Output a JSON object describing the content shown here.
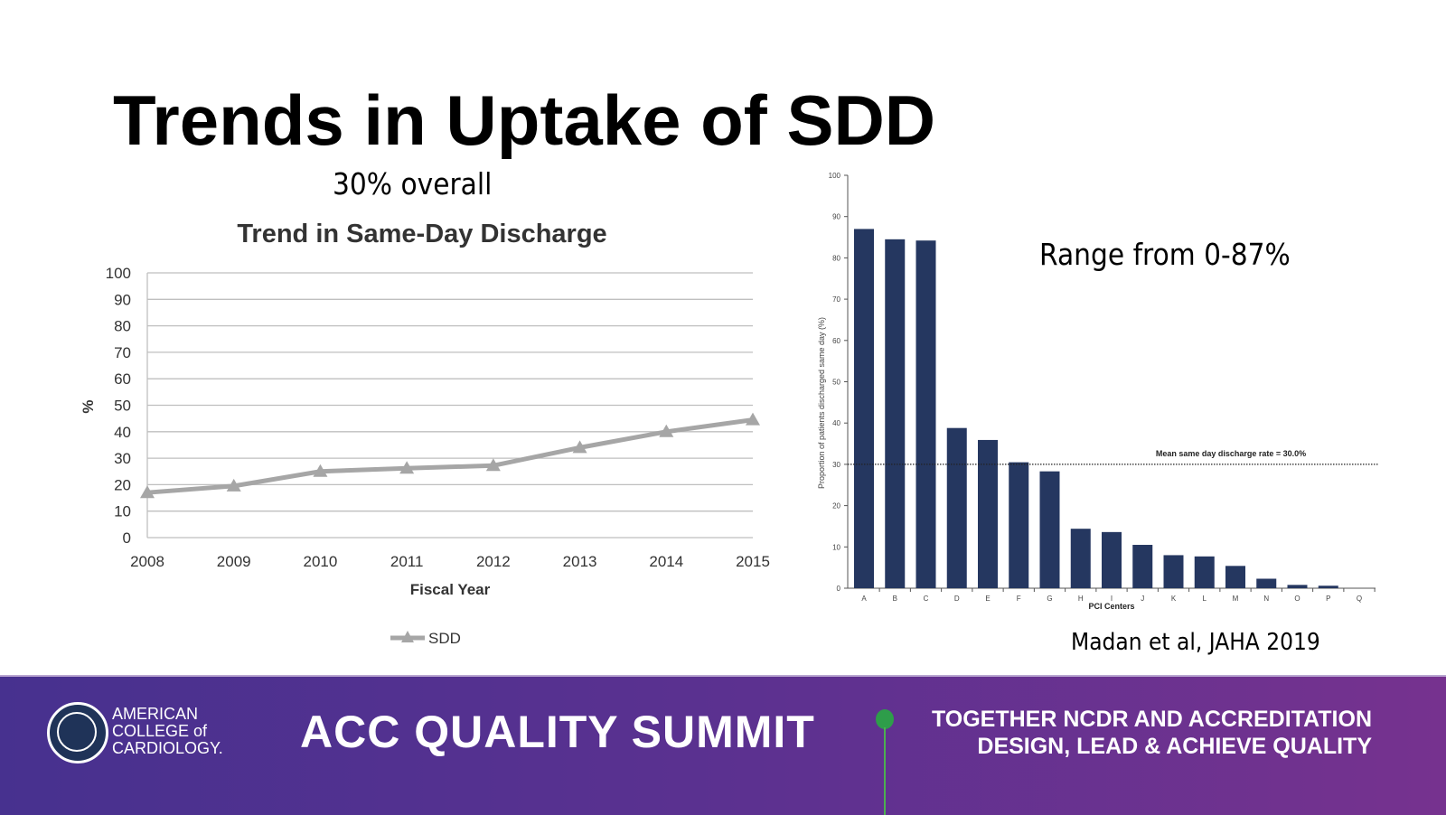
{
  "slide": {
    "title": "Trends in Uptake of SDD",
    "overall": "30% overall",
    "range_note": "Range from 0-87%",
    "citation": "Madan et al, JAHA 2019"
  },
  "chart_data": [
    {
      "type": "line",
      "title": "Trend in Same-Day Discharge",
      "xlabel": "Fiscal Year",
      "ylabel": "%",
      "categories": [
        "2008",
        "2009",
        "2010",
        "2011",
        "2012",
        "2013",
        "2014",
        "2015"
      ],
      "series": [
        {
          "name": "SDD",
          "values": [
            17,
            19.5,
            25,
            26.2,
            27.2,
            34,
            40,
            44.5
          ],
          "color": "#a6a6a6"
        }
      ],
      "ylim": [
        0,
        100
      ],
      "yticks": [
        0,
        10,
        20,
        30,
        40,
        50,
        60,
        70,
        80,
        90,
        100
      ],
      "grid": true,
      "legend": "bottom"
    },
    {
      "type": "bar",
      "xlabel": "PCI Centers",
      "ylabel": "Proportion of patients discharged same day (%)",
      "categories": [
        "A",
        "B",
        "C",
        "D",
        "E",
        "F",
        "G",
        "H",
        "I",
        "J",
        "K",
        "L",
        "M",
        "N",
        "O",
        "P",
        "Q"
      ],
      "values": [
        87,
        84.5,
        84.2,
        38.8,
        35.9,
        30.5,
        28.3,
        14.4,
        13.6,
        10.5,
        8,
        7.7,
        5.4,
        2.3,
        0.8,
        0.6,
        0
      ],
      "ylim": [
        0,
        100
      ],
      "yticks": [
        0,
        10,
        20,
        30,
        40,
        50,
        60,
        70,
        80,
        90,
        100
      ],
      "color": "#253760",
      "reference_line": {
        "value": 30,
        "label": "Mean same day discharge rate = 30.0%"
      }
    }
  ],
  "footer": {
    "logo_lines": [
      "AMERICAN",
      "COLLEGE of",
      "CARDIOLOGY."
    ],
    "event": "ACC QUALITY SUMMIT",
    "tagline_1": "TOGETHER NCDR AND ACCREDITATION",
    "tagline_2": "DESIGN, LEAD & ACHIEVE QUALITY",
    "dot_color": "#2e9d4a"
  }
}
